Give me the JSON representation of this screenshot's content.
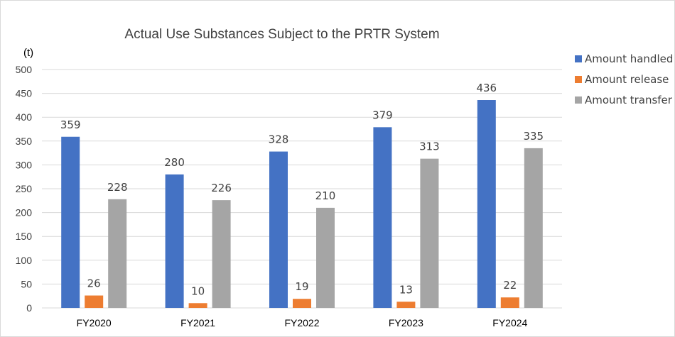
{
  "chart_data": {
    "type": "bar",
    "title": "Actual Use Substances Subject  to the PRTR System",
    "unit_label": "(t)",
    "xlabel": "",
    "ylabel": "(t)",
    "ylim": [
      0,
      500
    ],
    "yticks": [
      0,
      50,
      100,
      150,
      200,
      250,
      300,
      350,
      400,
      450,
      500
    ],
    "grid": true,
    "legend_position": "right",
    "categories": [
      "FY2020",
      "FY2021",
      "FY2022",
      "FY2023",
      "FY2024"
    ],
    "series": [
      {
        "name": "Amount handled",
        "color": "#4472c4",
        "values": [
          359,
          280,
          328,
          379,
          436
        ]
      },
      {
        "name": "Amount release",
        "color": "#ed7d31",
        "values": [
          26,
          10,
          19,
          13,
          22
        ]
      },
      {
        "name": "Amount transfer",
        "color": "#a5a5a5",
        "values": [
          228,
          226,
          210,
          313,
          335
        ]
      }
    ]
  }
}
